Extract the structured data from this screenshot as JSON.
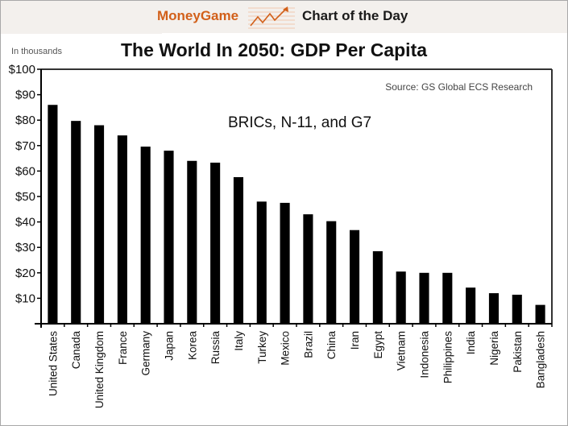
{
  "header": {
    "brand": "MoneyGame",
    "logo_icon": "rising-chart-arrow-icon",
    "section": "Chart of the Day",
    "colors": {
      "brand": "#d2601a",
      "header_bg": "#f3f0ed"
    }
  },
  "chart_data": {
    "type": "bar",
    "title": "The World In 2050: GDP Per Capita",
    "subtitle": "BRICs, N-11, and G7",
    "source": "Source: GS Global ECS Research",
    "unit_note": "In thousands",
    "xlabel": "",
    "ylabel": "",
    "ylim": [
      0,
      100
    ],
    "yticks": [
      0,
      10,
      20,
      30,
      40,
      50,
      60,
      70,
      80,
      90,
      100
    ],
    "ytick_labels": [
      "",
      "$10",
      "$20",
      "$30",
      "$40",
      "$50",
      "$60",
      "$70",
      "$80",
      "$90",
      "$100"
    ],
    "grid": false,
    "legend": "none",
    "bar_color": "#000000",
    "categories": [
      "United States",
      "Canada",
      "United Kingdom",
      "France",
      "Germany",
      "Japan",
      "Korea",
      "Russia",
      "Italy",
      "Turkey",
      "Mexico",
      "Brazil",
      "China",
      "Iran",
      "Egypt",
      "Vietnam",
      "Indonesia",
      "Philippines",
      "India",
      "Nigeria",
      "Pakistan",
      "Bangladesh"
    ],
    "values": [
      86,
      79.7,
      78,
      74,
      69.6,
      68,
      64,
      63.3,
      57.6,
      48,
      47.5,
      43,
      40.3,
      36.8,
      28.5,
      20.5,
      20,
      20,
      14.2,
      12,
      11.4,
      7.4
    ]
  }
}
